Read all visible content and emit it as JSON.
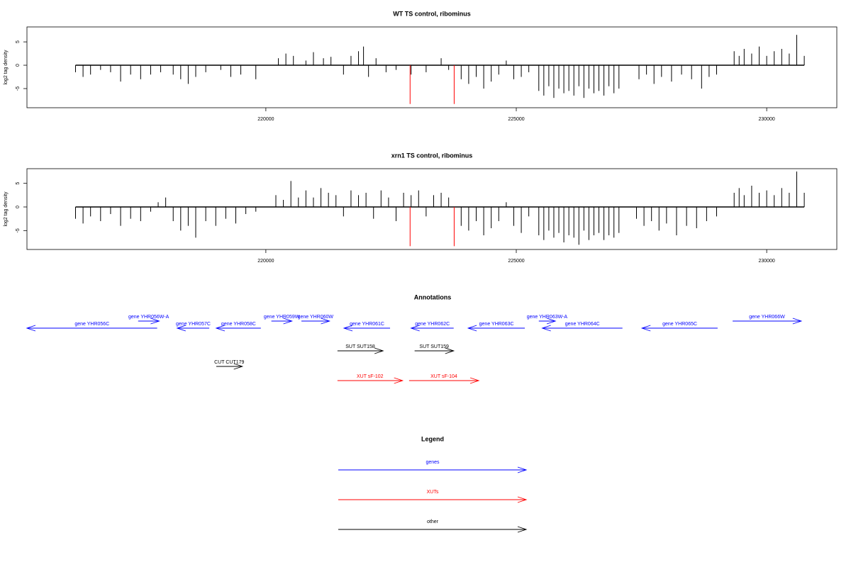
{
  "chart_data": [
    {
      "type": "spike",
      "title": "WT TS control, ribominus",
      "ylabel": "log2 tag density",
      "xlim": [
        215230,
        231400
      ],
      "ylim": [
        -9.1,
        8.2
      ],
      "xticks": [
        220000,
        225000,
        230000
      ],
      "yticks": [
        -5,
        0,
        5
      ],
      "series": [
        {
          "color": "#000000",
          "x": [
            216200,
            216350,
            216500,
            216700,
            216900,
            217100,
            217300,
            217500,
            217700,
            217900,
            218150,
            218300,
            218450,
            218600,
            218800,
            219100,
            219300,
            219500,
            219800,
            220250,
            220400,
            220550,
            220800,
            220950,
            221150,
            221300,
            221550,
            221700,
            221850,
            221950,
            222050,
            222200,
            222400,
            222600,
            222900,
            223200,
            223500,
            223650,
            223900,
            224050,
            224200,
            224350,
            224500,
            224650,
            224800,
            224950,
            225100,
            225250,
            225450,
            225550,
            225650,
            225750,
            225850,
            225950,
            226050,
            226150,
            226250,
            226350,
            226450,
            226550,
            226650,
            226750,
            226850,
            226950,
            227050,
            227450,
            227600,
            227750,
            227900,
            228100,
            228300,
            228500,
            228700,
            228850,
            229000,
            229350,
            229450,
            229550,
            229700,
            229850,
            230000,
            230150,
            230300,
            230450,
            230600,
            230750
          ],
          "values": [
            -1.5,
            -2.5,
            -2,
            -1,
            -1.5,
            -3.5,
            -2,
            -3,
            -2,
            -1.5,
            -2,
            -3,
            -4,
            -2.5,
            -1.5,
            -1,
            -2.5,
            -2,
            -3,
            1.5,
            2.5,
            2,
            1,
            2.8,
            1.5,
            1.8,
            -2,
            2,
            3,
            4,
            -2.5,
            1.5,
            -1.5,
            -1,
            -2,
            -1.5,
            1.5,
            -1,
            -3,
            -4,
            -2.5,
            -5,
            -3.5,
            -2,
            1,
            -3,
            -2.5,
            -1.5,
            -5.5,
            -6.5,
            -4.5,
            -7,
            -5,
            -6,
            -5.5,
            -6.5,
            -4.5,
            -7,
            -5,
            -6,
            -5.5,
            -6.5,
            -4.5,
            -6,
            -5,
            -3,
            -2,
            -4,
            -2.5,
            -3.5,
            -2,
            -3,
            -5,
            -2.5,
            -2,
            3,
            2,
            3.5,
            2.5,
            4,
            2,
            3,
            3.5,
            2.5,
            6.5,
            2
          ]
        },
        {
          "color": "#ff0000",
          "x": [
            222880,
            223760
          ],
          "values": [
            -8.3,
            -8.3
          ]
        }
      ]
    },
    {
      "type": "spike",
      "title": "xrn1 TS control, ribominus",
      "ylabel": "log2 tag density",
      "xlim": [
        215230,
        231400
      ],
      "ylim": [
        -9,
        8.1
      ],
      "xticks": [
        220000,
        225000,
        230000
      ],
      "yticks": [
        -5,
        0,
        5
      ],
      "series": [
        {
          "color": "#000000",
          "x": [
            216200,
            216350,
            216500,
            216700,
            216900,
            217100,
            217300,
            217500,
            217700,
            217850,
            218000,
            218150,
            218300,
            218450,
            218600,
            218800,
            219000,
            219200,
            219400,
            219600,
            219800,
            220200,
            220350,
            220500,
            220650,
            220800,
            220950,
            221100,
            221250,
            221400,
            221550,
            221700,
            221850,
            222000,
            222150,
            222300,
            222450,
            222600,
            222750,
            222900,
            223050,
            223200,
            223350,
            223500,
            223650,
            223900,
            224050,
            224200,
            224350,
            224500,
            224650,
            224800,
            224950,
            225100,
            225250,
            225450,
            225550,
            225650,
            225750,
            225850,
            225950,
            226050,
            226150,
            226250,
            226350,
            226450,
            226550,
            226650,
            226750,
            226850,
            226950,
            227050,
            227400,
            227550,
            227700,
            227850,
            228000,
            228200,
            228400,
            228600,
            228800,
            229000,
            229350,
            229450,
            229550,
            229700,
            229850,
            230000,
            230150,
            230300,
            230450,
            230600,
            230750
          ],
          "values": [
            -2.5,
            -3.5,
            -2,
            -3,
            -1.5,
            -4,
            -2.5,
            -3,
            -1,
            1,
            2,
            -3,
            -5,
            -4,
            -6.5,
            -3,
            -4,
            -2.5,
            -3.5,
            -1.5,
            -1,
            2.5,
            1.5,
            5.5,
            2,
            3.5,
            2,
            4,
            3,
            2.5,
            -2,
            3.5,
            2.5,
            3,
            -2.5,
            3.5,
            2,
            -3,
            3,
            2.5,
            3.5,
            -2,
            2.5,
            3,
            2,
            -4,
            -5,
            -3,
            -6,
            -4.5,
            -3,
            1,
            -4,
            -5.5,
            -2,
            -6,
            -7,
            -5,
            -6.5,
            -5.5,
            -7.5,
            -6,
            -6.5,
            -8,
            -5,
            -7,
            -6,
            -5.5,
            -7,
            -6,
            -6.5,
            -5.5,
            -2.5,
            -4,
            -3,
            -5,
            -3.5,
            -6,
            -4,
            -4.5,
            -3,
            -2,
            3,
            4,
            2.5,
            4.5,
            3,
            3.5,
            2.5,
            4,
            3,
            7.5,
            3
          ]
        },
        {
          "color": "#ff0000",
          "x": [
            222880,
            223760
          ],
          "values": [
            -8.3,
            -8.3
          ]
        }
      ]
    }
  ],
  "annotations": {
    "title": "Annotations",
    "groups": [
      {
        "color": "#0000ff",
        "features": [
          {
            "label": "gene YHR056C",
            "start": 217830,
            "end": 215230
          },
          {
            "label": "gene YHR056W-A",
            "start": 217450,
            "end": 217870
          },
          {
            "label": "gene YHR057C",
            "start": 218870,
            "end": 218230
          },
          {
            "label": "gene YHR058C",
            "start": 219900,
            "end": 219010
          },
          {
            "label": "gene YHR059W",
            "start": 220110,
            "end": 220520
          },
          {
            "label": "gene YHR060W",
            "start": 220710,
            "end": 221270
          },
          {
            "label": "gene YHR061C",
            "start": 222480,
            "end": 221560
          },
          {
            "label": "gene YHR062C",
            "start": 223750,
            "end": 222900
          },
          {
            "label": "gene YHR063C",
            "start": 225170,
            "end": 224040
          },
          {
            "label": "gene YHR063W-A",
            "start": 225450,
            "end": 225780
          },
          {
            "label": "gene YHR064C",
            "start": 227120,
            "end": 225520
          },
          {
            "label": "gene YHR065C",
            "start": 229020,
            "end": 227510
          },
          {
            "label": "gene YHR066W",
            "start": 229320,
            "end": 230690
          }
        ]
      },
      {
        "color": "#000000",
        "features": [
          {
            "label": "SUT SUT158",
            "start": 221430,
            "end": 222340
          },
          {
            "label": "SUT SUT159",
            "start": 222970,
            "end": 223750
          },
          {
            "label": "CUT CUT179",
            "start": 219010,
            "end": 219530
          }
        ]
      },
      {
        "color": "#ff0000",
        "features": [
          {
            "label": "XUT sF-102",
            "start": 221430,
            "end": 222730
          },
          {
            "label": "XUT sF-104",
            "start": 222860,
            "end": 224250
          }
        ]
      }
    ]
  },
  "legend": {
    "title": "Legend",
    "entries": [
      {
        "label": "genes",
        "color": "#0000ff"
      },
      {
        "label": "XUTs",
        "color": "#ff0000"
      },
      {
        "label": "other",
        "color": "#000000"
      }
    ]
  }
}
